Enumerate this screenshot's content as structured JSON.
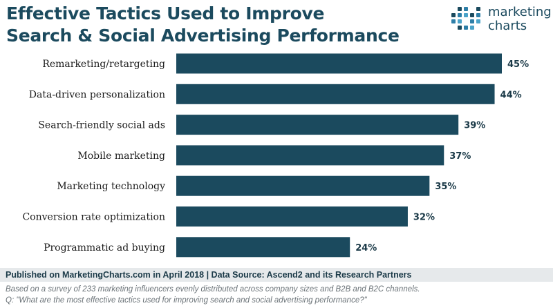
{
  "header": {
    "title_line1": "Effective Tactics Used to Improve",
    "title_line2": "Search & Social Advertising Performance"
  },
  "logo": {
    "line1": "marketing",
    "line2": "charts",
    "colors": [
      "#4aa3c9",
      "#1b4a5e",
      "#2e7fa8"
    ]
  },
  "chart_data": {
    "type": "bar",
    "orientation": "horizontal",
    "categories": [
      "Remarketing/retargeting",
      "Data-driven personalization",
      "Search-friendly social ads",
      "Mobile marketing",
      "Marketing technology",
      "Conversion rate optimization",
      "Programmatic ad buying"
    ],
    "values": [
      45,
      44,
      39,
      37,
      35,
      32,
      24
    ],
    "value_labels": [
      "45%",
      "44%",
      "39%",
      "37%",
      "35%",
      "32%",
      "24%"
    ],
    "xlim": [
      0,
      45
    ],
    "grid": false,
    "legend": "none",
    "bar_color": "#1b4a5e"
  },
  "footer": {
    "published": "Published on MarketingCharts.com in April 2018 | Data Source: Ascend2 and its Research Partners",
    "note1": "Based on a survey of 233 marketing influencers evenly distributed across company sizes and B2B and B2C channels.",
    "note2": "Q: \"What are the most effective tactics used for improving search and social advertising performance?\""
  }
}
